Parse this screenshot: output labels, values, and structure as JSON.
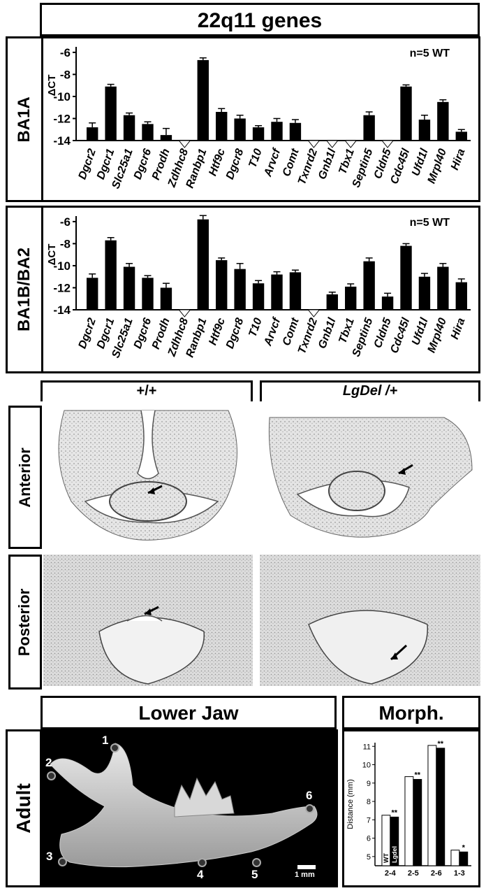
{
  "title": "22q11 genes",
  "charts": [
    {
      "panel_label": "BA1A",
      "note": "n=5 WT",
      "ylabel": "ΔCT"
    },
    {
      "panel_label": "BA1B/BA2",
      "note": "n=5 WT",
      "ylabel": "ΔCT"
    }
  ],
  "chart_data": [
    {
      "type": "bar",
      "categories": [
        "Dgcr2",
        "Dgcr1",
        "Slc25a1",
        "Dgcr6",
        "Prodh",
        "Zdhhc8",
        "Ranbp1",
        "Htf9c",
        "Dgcr8",
        "T10",
        "Arvcf",
        "Comt",
        "Txnrd2",
        "Gnb1l",
        "Tbx1",
        "Septin5",
        "Cldn5",
        "Cdc45l",
        "Ufd1l",
        "Mrpl40",
        "Hira"
      ],
      "values": [
        -12.8,
        -9.1,
        -11.7,
        -12.5,
        -13.5,
        null,
        -6.7,
        -11.4,
        -12.0,
        -12.8,
        -12.3,
        -12.4,
        null,
        null,
        null,
        -11.7,
        null,
        -9.1,
        -12.1,
        -10.5,
        -13.2
      ],
      "errors": [
        0.4,
        0.2,
        0.2,
        0.2,
        0.6,
        null,
        0.2,
        0.3,
        0.3,
        0.15,
        0.3,
        0.3,
        null,
        null,
        null,
        0.3,
        null,
        0.15,
        0.4,
        0.2,
        0.2
      ],
      "ylabel": "ΔCT",
      "ylim": [
        -14,
        -5.5
      ],
      "yticks": [
        -6,
        -8,
        -10,
        -12,
        -14
      ]
    },
    {
      "type": "bar",
      "categories": [
        "Dgcr2",
        "Dgcr1",
        "Slc25a1",
        "Dgcr6",
        "Prodh",
        "Zdhhc8",
        "Ranbp1",
        "Htf9c",
        "Dgcr8",
        "T10",
        "Arvcf",
        "Comt",
        "Txnrd2",
        "Gnb1l",
        "Tbx1",
        "Septin5",
        "Cldn5",
        "Cdc45l",
        "Ufd1l",
        "Mrpl40",
        "Hira"
      ],
      "values": [
        -11.1,
        -7.7,
        -10.1,
        -11.1,
        -12.0,
        null,
        -5.8,
        -9.5,
        -10.3,
        -11.6,
        -10.8,
        -10.6,
        null,
        -12.6,
        -11.9,
        -9.6,
        -12.8,
        -8.2,
        -11.0,
        -10.1,
        -11.5
      ],
      "errors": [
        0.35,
        0.25,
        0.3,
        0.2,
        0.4,
        null,
        0.35,
        0.2,
        0.5,
        0.25,
        0.25,
        0.2,
        null,
        0.2,
        0.25,
        0.3,
        0.3,
        0.2,
        0.3,
        0.3,
        0.3
      ],
      "ylabel": "ΔCT",
      "ylim": [
        -14,
        -5.5
      ],
      "yticks": [
        -6,
        -8,
        -10,
        -12,
        -14
      ]
    },
    {
      "type": "bar",
      "categories": [
        "2-4",
        "2-5",
        "2-6",
        "1-3"
      ],
      "series": [
        {
          "name": "WT",
          "values": [
            7.25,
            9.35,
            11.05,
            5.35
          ],
          "color": "#ffffff"
        },
        {
          "name": "Lgdel",
          "values": [
            7.15,
            9.2,
            10.9,
            5.25
          ],
          "color": "#000000"
        }
      ],
      "significance": [
        "**",
        "**",
        "**",
        "*"
      ],
      "ylabel": "Distance (mm)",
      "ylim": [
        4.5,
        11.2
      ],
      "yticks": [
        5,
        6,
        7,
        8,
        9,
        10,
        11
      ]
    }
  ],
  "histology": {
    "genotypes": [
      "+/+",
      "LgDel /+"
    ],
    "rows": [
      "Anterior",
      "Posterior"
    ]
  },
  "jaw": {
    "title": "Lower Jaw",
    "row_label": "Adult",
    "landmarks": [
      "1",
      "2",
      "3",
      "4",
      "5",
      "6"
    ],
    "scale_label": "1 mm"
  },
  "morph": {
    "title": "Morph."
  }
}
